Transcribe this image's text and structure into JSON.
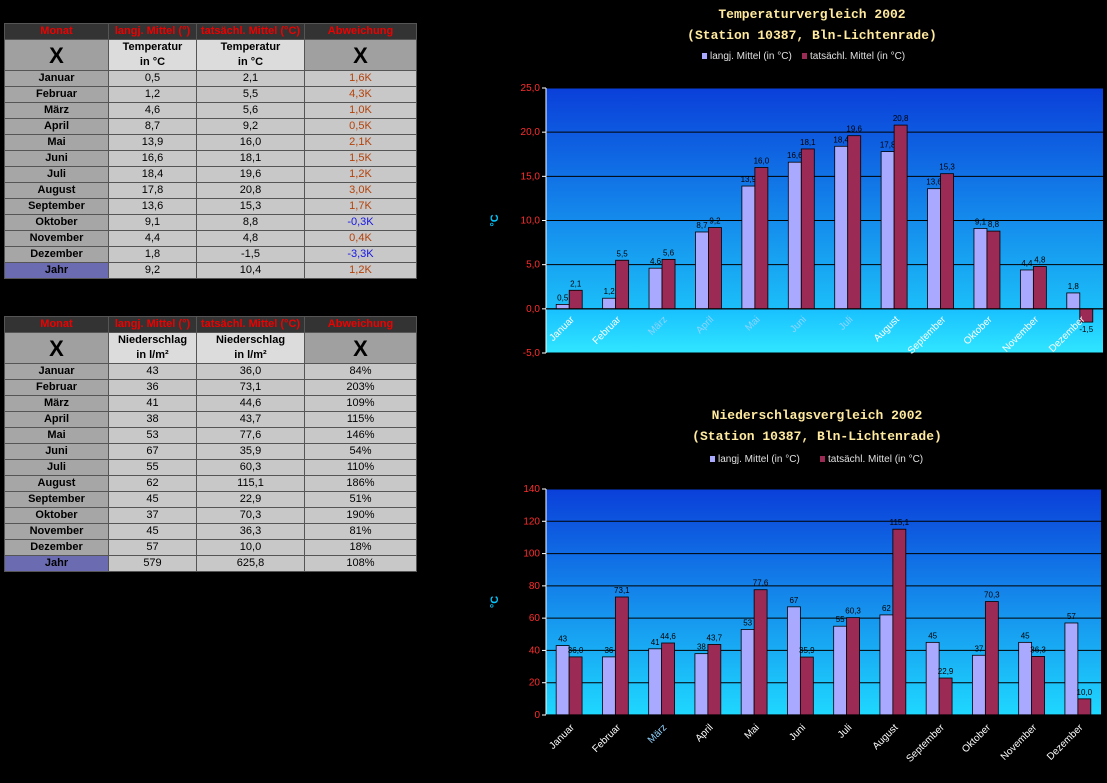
{
  "temp_table": {
    "headers": [
      "Monat",
      "langj. Mittel (°)",
      "tatsächl. Mittel (°C)",
      "Abweichung"
    ],
    "sub_x": "X",
    "sub_col1": [
      "Temperatur",
      "in °C"
    ],
    "sub_col2": [
      "Temperatur",
      "in °C"
    ],
    "rows": [
      {
        "month": "Januar",
        "avg": "0,5",
        "actual": "2,1",
        "dev": "1,6K",
        "dir": "up"
      },
      {
        "month": "Februar",
        "avg": "1,2",
        "actual": "5,5",
        "dev": "4,3K",
        "dir": "up"
      },
      {
        "month": "März",
        "avg": "4,6",
        "actual": "5,6",
        "dev": "1,0K",
        "dir": "up"
      },
      {
        "month": "April",
        "avg": "8,7",
        "actual": "9,2",
        "dev": "0,5K",
        "dir": "up"
      },
      {
        "month": "Mai",
        "avg": "13,9",
        "actual": "16,0",
        "dev": "2,1K",
        "dir": "up"
      },
      {
        "month": "Juni",
        "avg": "16,6",
        "actual": "18,1",
        "dev": "1,5K",
        "dir": "up"
      },
      {
        "month": "Juli",
        "avg": "18,4",
        "actual": "19,6",
        "dev": "1,2K",
        "dir": "up"
      },
      {
        "month": "August",
        "avg": "17,8",
        "actual": "20,8",
        "dev": "3,0K",
        "dir": "up"
      },
      {
        "month": "September",
        "avg": "13,6",
        "actual": "15,3",
        "dev": "1,7K",
        "dir": "up"
      },
      {
        "month": "Oktober",
        "avg": "9,1",
        "actual": "8,8",
        "dev": "-0,3K",
        "dir": "down"
      },
      {
        "month": "November",
        "avg": "4,4",
        "actual": "4,8",
        "dev": "0,4K",
        "dir": "up"
      },
      {
        "month": "Dezember",
        "avg": "1,8",
        "actual": "-1,5",
        "dev": "-3,3K",
        "dir": "down"
      }
    ],
    "year": {
      "month": "Jahr",
      "avg": "9,2",
      "actual": "10,4",
      "dev": "1,2K",
      "dir": "up"
    }
  },
  "precip_table": {
    "headers": [
      "Monat",
      "langj. Mittel (°)",
      "tatsächl. Mittel (°C)",
      "Abweichung"
    ],
    "sub_x": "X",
    "sub_col1": [
      "Niederschlag",
      "in l/m²"
    ],
    "sub_col2": [
      "Niederschlag",
      "in l/m²"
    ],
    "rows": [
      {
        "month": "Januar",
        "avg": "43",
        "actual": "36,0",
        "dev": "84%"
      },
      {
        "month": "Februar",
        "avg": "36",
        "actual": "73,1",
        "dev": "203%"
      },
      {
        "month": "März",
        "avg": "41",
        "actual": "44,6",
        "dev": "109%"
      },
      {
        "month": "April",
        "avg": "38",
        "actual": "43,7",
        "dev": "115%"
      },
      {
        "month": "Mai",
        "avg": "53",
        "actual": "77,6",
        "dev": "146%"
      },
      {
        "month": "Juni",
        "avg": "67",
        "actual": "35,9",
        "dev": "54%"
      },
      {
        "month": "Juli",
        "avg": "55",
        "actual": "60,3",
        "dev": "110%"
      },
      {
        "month": "August",
        "avg": "62",
        "actual": "115,1",
        "dev": "186%"
      },
      {
        "month": "September",
        "avg": "45",
        "actual": "22,9",
        "dev": "51%"
      },
      {
        "month": "Oktober",
        "avg": "37",
        "actual": "70,3",
        "dev": "190%"
      },
      {
        "month": "November",
        "avg": "45",
        "actual": "36,3",
        "dev": "81%"
      },
      {
        "month": "Dezember",
        "avg": "57",
        "actual": "10,0",
        "dev": "18%"
      }
    ],
    "year": {
      "month": "Jahr",
      "avg": "579",
      "actual": "625,8",
      "dev": "108%"
    }
  },
  "chart_data": [
    {
      "type": "bar",
      "title": "Temperaturvergleich 2002",
      "subtitle": "(Station 10387, Bln-Lichtenrade)",
      "ylabel": "°C",
      "ylim": [
        -5,
        25
      ],
      "yticks": [
        "-5,0",
        "0,0",
        "5,0",
        "10,0",
        "15,0",
        "20,0",
        "25,0"
      ],
      "categories": [
        "Januar",
        "Februar",
        "März",
        "April",
        "Mai",
        "Juni",
        "Juli",
        "August",
        "September",
        "Oktober",
        "November",
        "Dezember"
      ],
      "series": [
        {
          "name": "langj. Mittel (in °C)",
          "color": "#a9a9ff",
          "values": [
            0.5,
            1.2,
            4.6,
            8.7,
            13.9,
            16.6,
            18.4,
            17.8,
            13.6,
            9.1,
            4.4,
            1.8
          ],
          "labels": [
            "0,5",
            "1,2",
            "4,6",
            "8,7",
            "13,9",
            "16,6",
            "18,4",
            "17,8",
            "13,6",
            "9,1",
            "4,4",
            "1,8"
          ]
        },
        {
          "name": "tatsächl. Mittel (in °C)",
          "color": "#9b2a55",
          "values": [
            2.1,
            5.5,
            5.6,
            9.2,
            16.0,
            18.1,
            19.6,
            20.8,
            15.3,
            8.8,
            4.8,
            -1.5
          ],
          "labels": [
            "2,1",
            "5,5",
            "5,6",
            "9,2",
            "16,0",
            "18,1",
            "19,6",
            "20,8",
            "15,3",
            "8,8",
            "4,8",
            "-1,5"
          ]
        }
      ],
      "grid": true,
      "legend": "top"
    },
    {
      "type": "bar",
      "title": "Niederschlagsvergleich 2002",
      "subtitle": "(Station 10387, Bln-Lichtenrade)",
      "ylabel": "°C",
      "ylim": [
        0,
        140
      ],
      "yticks": [
        "0",
        "20",
        "40",
        "60",
        "80",
        "100",
        "120",
        "140"
      ],
      "categories": [
        "Januar",
        "Februar",
        "März",
        "April",
        "Mai",
        "Juni",
        "Juli",
        "August",
        "September",
        "Oktober",
        "November",
        "Dezember"
      ],
      "series": [
        {
          "name": "langj. Mittel (in °C)",
          "color": "#a9a9ff",
          "values": [
            43,
            36,
            41,
            38,
            53,
            67,
            55,
            62,
            45,
            37,
            45,
            57
          ],
          "labels": [
            "43",
            "36",
            "41",
            "38",
            "53",
            "67",
            "55",
            "62",
            "45",
            "37",
            "45",
            "57"
          ]
        },
        {
          "name": "tatsächl. Mittel (in °C)",
          "color": "#9b2a55",
          "values": [
            36.0,
            73.1,
            44.6,
            43.7,
            77.6,
            35.9,
            60.3,
            115.1,
            22.9,
            70.3,
            36.3,
            10.0
          ],
          "labels": [
            "36,0",
            "73,1",
            "44,6",
            "43,7",
            "77,6",
            "35,9",
            "60,3",
            "115,1",
            "22,9",
            "70,3",
            "36,3",
            "10,0"
          ]
        }
      ],
      "grid": true,
      "legend": "top"
    }
  ]
}
